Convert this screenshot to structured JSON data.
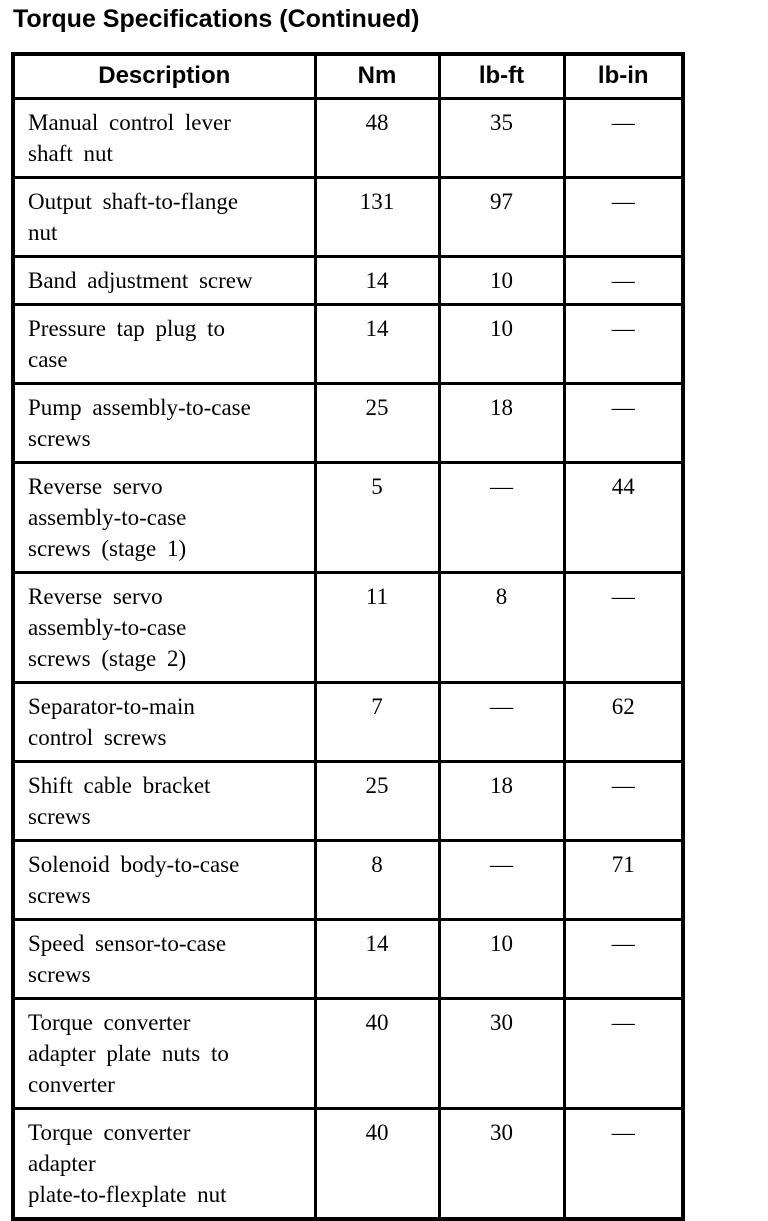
{
  "page": {
    "title": "Torque Specifications (Continued)"
  },
  "colors": {
    "text": "#000000",
    "background": "#ffffff",
    "border": "#000000"
  },
  "table": {
    "headers": {
      "description": "Description",
      "nm": "Nm",
      "lbft": "lb-ft",
      "lbin": "lb-in"
    },
    "rows": [
      {
        "description": "Manual control lever\nshaft nut",
        "nm": "48",
        "lbft": "35",
        "lbin": "—"
      },
      {
        "description": "Output shaft-to-flange\nnut",
        "nm": "131",
        "lbft": "97",
        "lbin": "—"
      },
      {
        "description": "Band adjustment screw",
        "nm": "14",
        "lbft": "10",
        "lbin": "—"
      },
      {
        "description": "Pressure tap plug to\ncase",
        "nm": "14",
        "lbft": "10",
        "lbin": "—"
      },
      {
        "description": "Pump assembly-to-case\nscrews",
        "nm": "25",
        "lbft": "18",
        "lbin": "—"
      },
      {
        "description": "Reverse servo\nassembly-to-case\nscrews (stage 1)",
        "nm": "5",
        "lbft": "—",
        "lbin": "44"
      },
      {
        "description": "Reverse servo\nassembly-to-case\nscrews (stage 2)",
        "nm": "11",
        "lbft": "8",
        "lbin": "—"
      },
      {
        "description": "Separator-to-main\ncontrol screws",
        "nm": "7",
        "lbft": "—",
        "lbin": "62"
      },
      {
        "description": "Shift cable bracket\nscrews",
        "nm": "25",
        "lbft": "18",
        "lbin": "—"
      },
      {
        "description": "Solenoid body-to-case\nscrews",
        "nm": "8",
        "lbft": "—",
        "lbin": "71"
      },
      {
        "description": "Speed sensor-to-case\nscrews",
        "nm": "14",
        "lbft": "10",
        "lbin": "—"
      },
      {
        "description": "Torque converter\nadapter plate nuts to\nconverter",
        "nm": "40",
        "lbft": "30",
        "lbin": "—"
      },
      {
        "description": "Torque converter\nadapter\nplate-to-flexplate nut",
        "nm": "40",
        "lbft": "30",
        "lbin": "—"
      }
    ]
  }
}
